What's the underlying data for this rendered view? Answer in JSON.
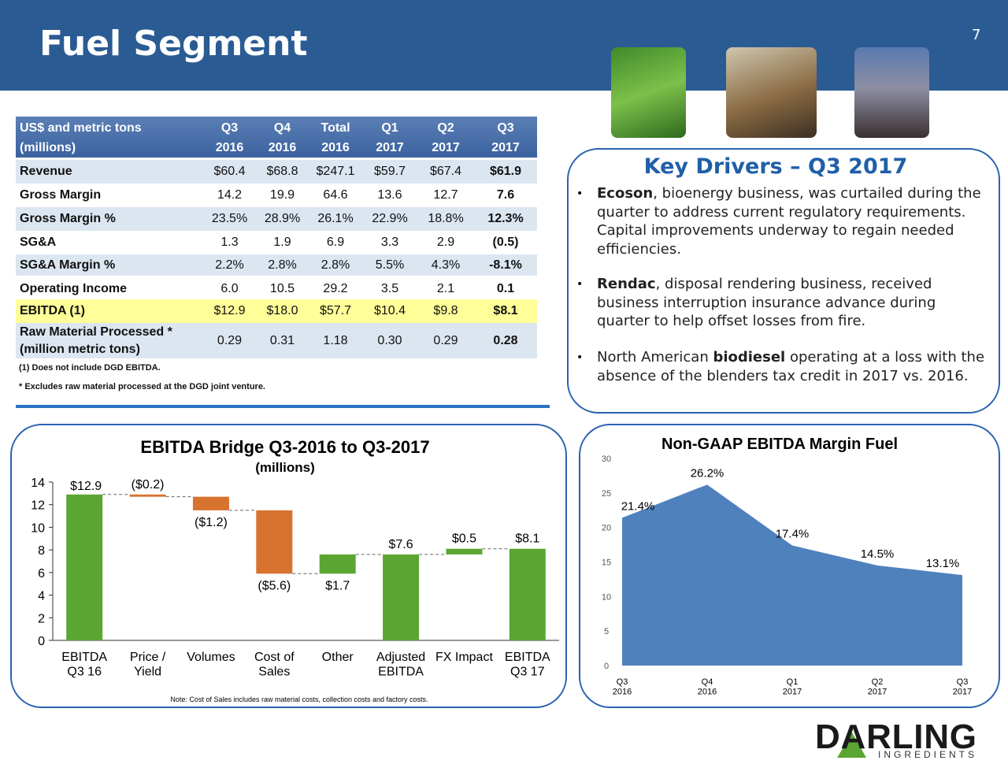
{
  "header": {
    "title": "Fuel Segment",
    "page_number": "7"
  },
  "table": {
    "header_rows": [
      [
        "US$ and metric tons",
        "Q3",
        "Q4",
        "Total",
        "Q1",
        "Q2",
        "Q3"
      ],
      [
        "(millions)",
        "2016",
        "2016",
        "2016",
        "2017",
        "2017",
        "2017"
      ]
    ],
    "rows": [
      [
        "Revenue",
        "$60.4",
        "$68.8",
        "$247.1",
        "$59.7",
        "$67.4",
        "$61.9"
      ],
      [
        "Gross Margin",
        "14.2",
        "19.9",
        "64.6",
        "13.6",
        "12.7",
        "7.6"
      ],
      [
        "Gross Margin %",
        "23.5%",
        "28.9%",
        "26.1%",
        "22.9%",
        "18.8%",
        "12.3%"
      ],
      [
        "SG&A",
        "1.3",
        "1.9",
        "6.9",
        "3.3",
        "2.9",
        "(0.5)"
      ],
      [
        "SG&A Margin %",
        "2.2%",
        "2.8%",
        "2.8%",
        "5.5%",
        "4.3%",
        "-8.1%"
      ],
      [
        "Operating Income",
        "6.0",
        "10.5",
        "29.2",
        "3.5",
        "2.1",
        "0.1"
      ],
      [
        "EBITDA (1)",
        "$12.9",
        "$18.0",
        "$57.7",
        "$10.4",
        "$9.8",
        "$8.1"
      ],
      [
        "Raw Material Processed *\n(million metric tons)",
        "0.29",
        "0.31",
        "1.18",
        "0.30",
        "0.29",
        "0.28"
      ]
    ],
    "notes": [
      "(1) Does not include DGD EBITDA.",
      "* Excludes raw material processed at the DGD joint venture."
    ]
  },
  "key_drivers": {
    "title": "Key Drivers – Q3 2017",
    "bullets": [
      {
        "parts": [
          {
            "text": "Ecoson",
            "bold": true
          },
          {
            "text": ", bioenergy business, was curtailed during the quarter to address current regulatory requirements. Capital improvements underway to regain needed efficiencies.",
            "bold": false
          }
        ]
      },
      {
        "parts": [
          {
            "text": "Rendac",
            "bold": true
          },
          {
            "text": ", disposal rendering business, received business interruption insurance advance during quarter to help offset losses from fire.",
            "bold": false
          }
        ]
      },
      {
        "parts": [
          {
            "text": "North American ",
            "bold": false
          },
          {
            "text": "biodiesel",
            "bold": true
          },
          {
            "text": " operating at a loss with the absence of the blenders tax credit in 2017 vs. 2016.",
            "bold": false
          }
        ]
      }
    ]
  },
  "chart_data": [
    {
      "type": "waterfall",
      "title": "EBITDA Bridge Q3-2016 to Q3-2017",
      "subtitle": "(millions)",
      "categories": [
        "EBITDA\nQ3 16",
        "Price /\nYield",
        "Volumes",
        "Cost of\nSales",
        "Other",
        "Adjusted\nEBITDA",
        "FX Impact",
        "EBITDA\nQ3 17"
      ],
      "values": [
        12.9,
        -0.2,
        -1.2,
        -5.6,
        1.7,
        7.6,
        0.5,
        8.1
      ],
      "value_labels": [
        "$12.9",
        "($0.2)",
        "($1.2)",
        "($5.6)",
        "$1.7",
        "$7.6",
        "$0.5",
        "$8.1"
      ],
      "bar_types": [
        "total",
        "delta",
        "delta",
        "delta",
        "delta",
        "total",
        "delta",
        "total"
      ],
      "colors": {
        "total": "#5ba632",
        "increase": "#5ba632",
        "decrease": "#d8722f"
      },
      "ylim": [
        0,
        14
      ],
      "yticks": [
        0,
        2,
        4,
        6,
        8,
        10,
        12,
        14
      ],
      "note": "Note: Cost of Sales includes raw material costs, collection costs and factory costs."
    },
    {
      "type": "area",
      "title": "Non-GAAP EBITDA Margin Fuel",
      "categories": [
        "Q3\n2016",
        "Q4\n2016",
        "Q1\n2017",
        "Q2\n2017",
        "Q3\n2017"
      ],
      "values": [
        21.4,
        26.2,
        17.4,
        14.5,
        13.1
      ],
      "value_labels": [
        "21.4%",
        "26.2%",
        "17.4%",
        "14.5%",
        "13.1%"
      ],
      "color": "#4f81bd",
      "ylim": [
        0,
        30
      ],
      "yticks": [
        0,
        5,
        10,
        15,
        20,
        25,
        30
      ]
    }
  ],
  "logo": {
    "name": "DARLING",
    "tagline": "INGREDIENTS"
  }
}
